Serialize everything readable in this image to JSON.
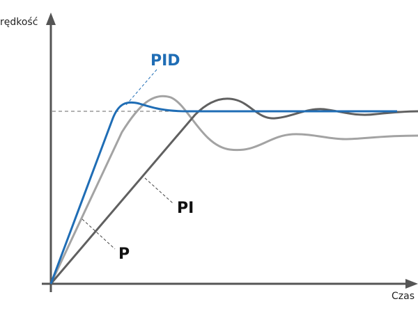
{
  "axes": {
    "y_label": "rędkość",
    "x_label": "Czas"
  },
  "curves": [
    {
      "label": "PID"
    },
    {
      "label": "PI"
    },
    {
      "label": "P"
    }
  ]
}
